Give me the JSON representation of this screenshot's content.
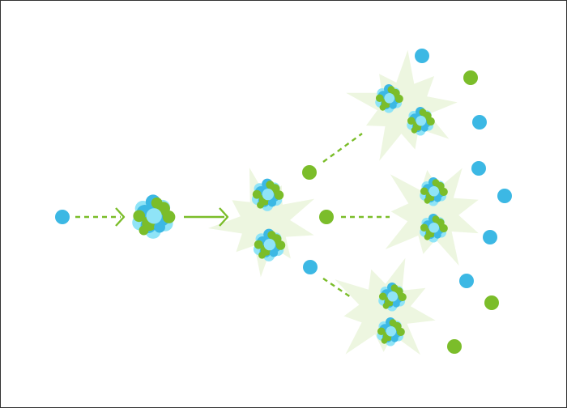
{
  "diagram": {
    "kind": "nuclear-fission-chain-reaction",
    "labels": [],
    "colors": {
      "neutron": "#3cb8e4",
      "nucleon_light": "#8fe4f7",
      "proton": "#7bbd2a",
      "burst": "#edf6e0",
      "arrow": "#7bbd2a",
      "border": "#333333"
    },
    "icons": {
      "incoming_neutron": "neutron-icon",
      "heavy_nucleus": "nucleus-icon",
      "split_fragment": "fission-fragment-icon",
      "energy_release": "energy-burst-icon",
      "released_neutron": "neutron-icon",
      "released_proton": "proton-icon"
    },
    "stages": {
      "incoming_particles": 1,
      "target_nuclei": 1,
      "first_split_fragments": 2,
      "first_split_emitted_particles": 3,
      "second_generation_fissions": 3,
      "second_generation_fragments": 6,
      "final_emitted_particles": 9
    }
  }
}
